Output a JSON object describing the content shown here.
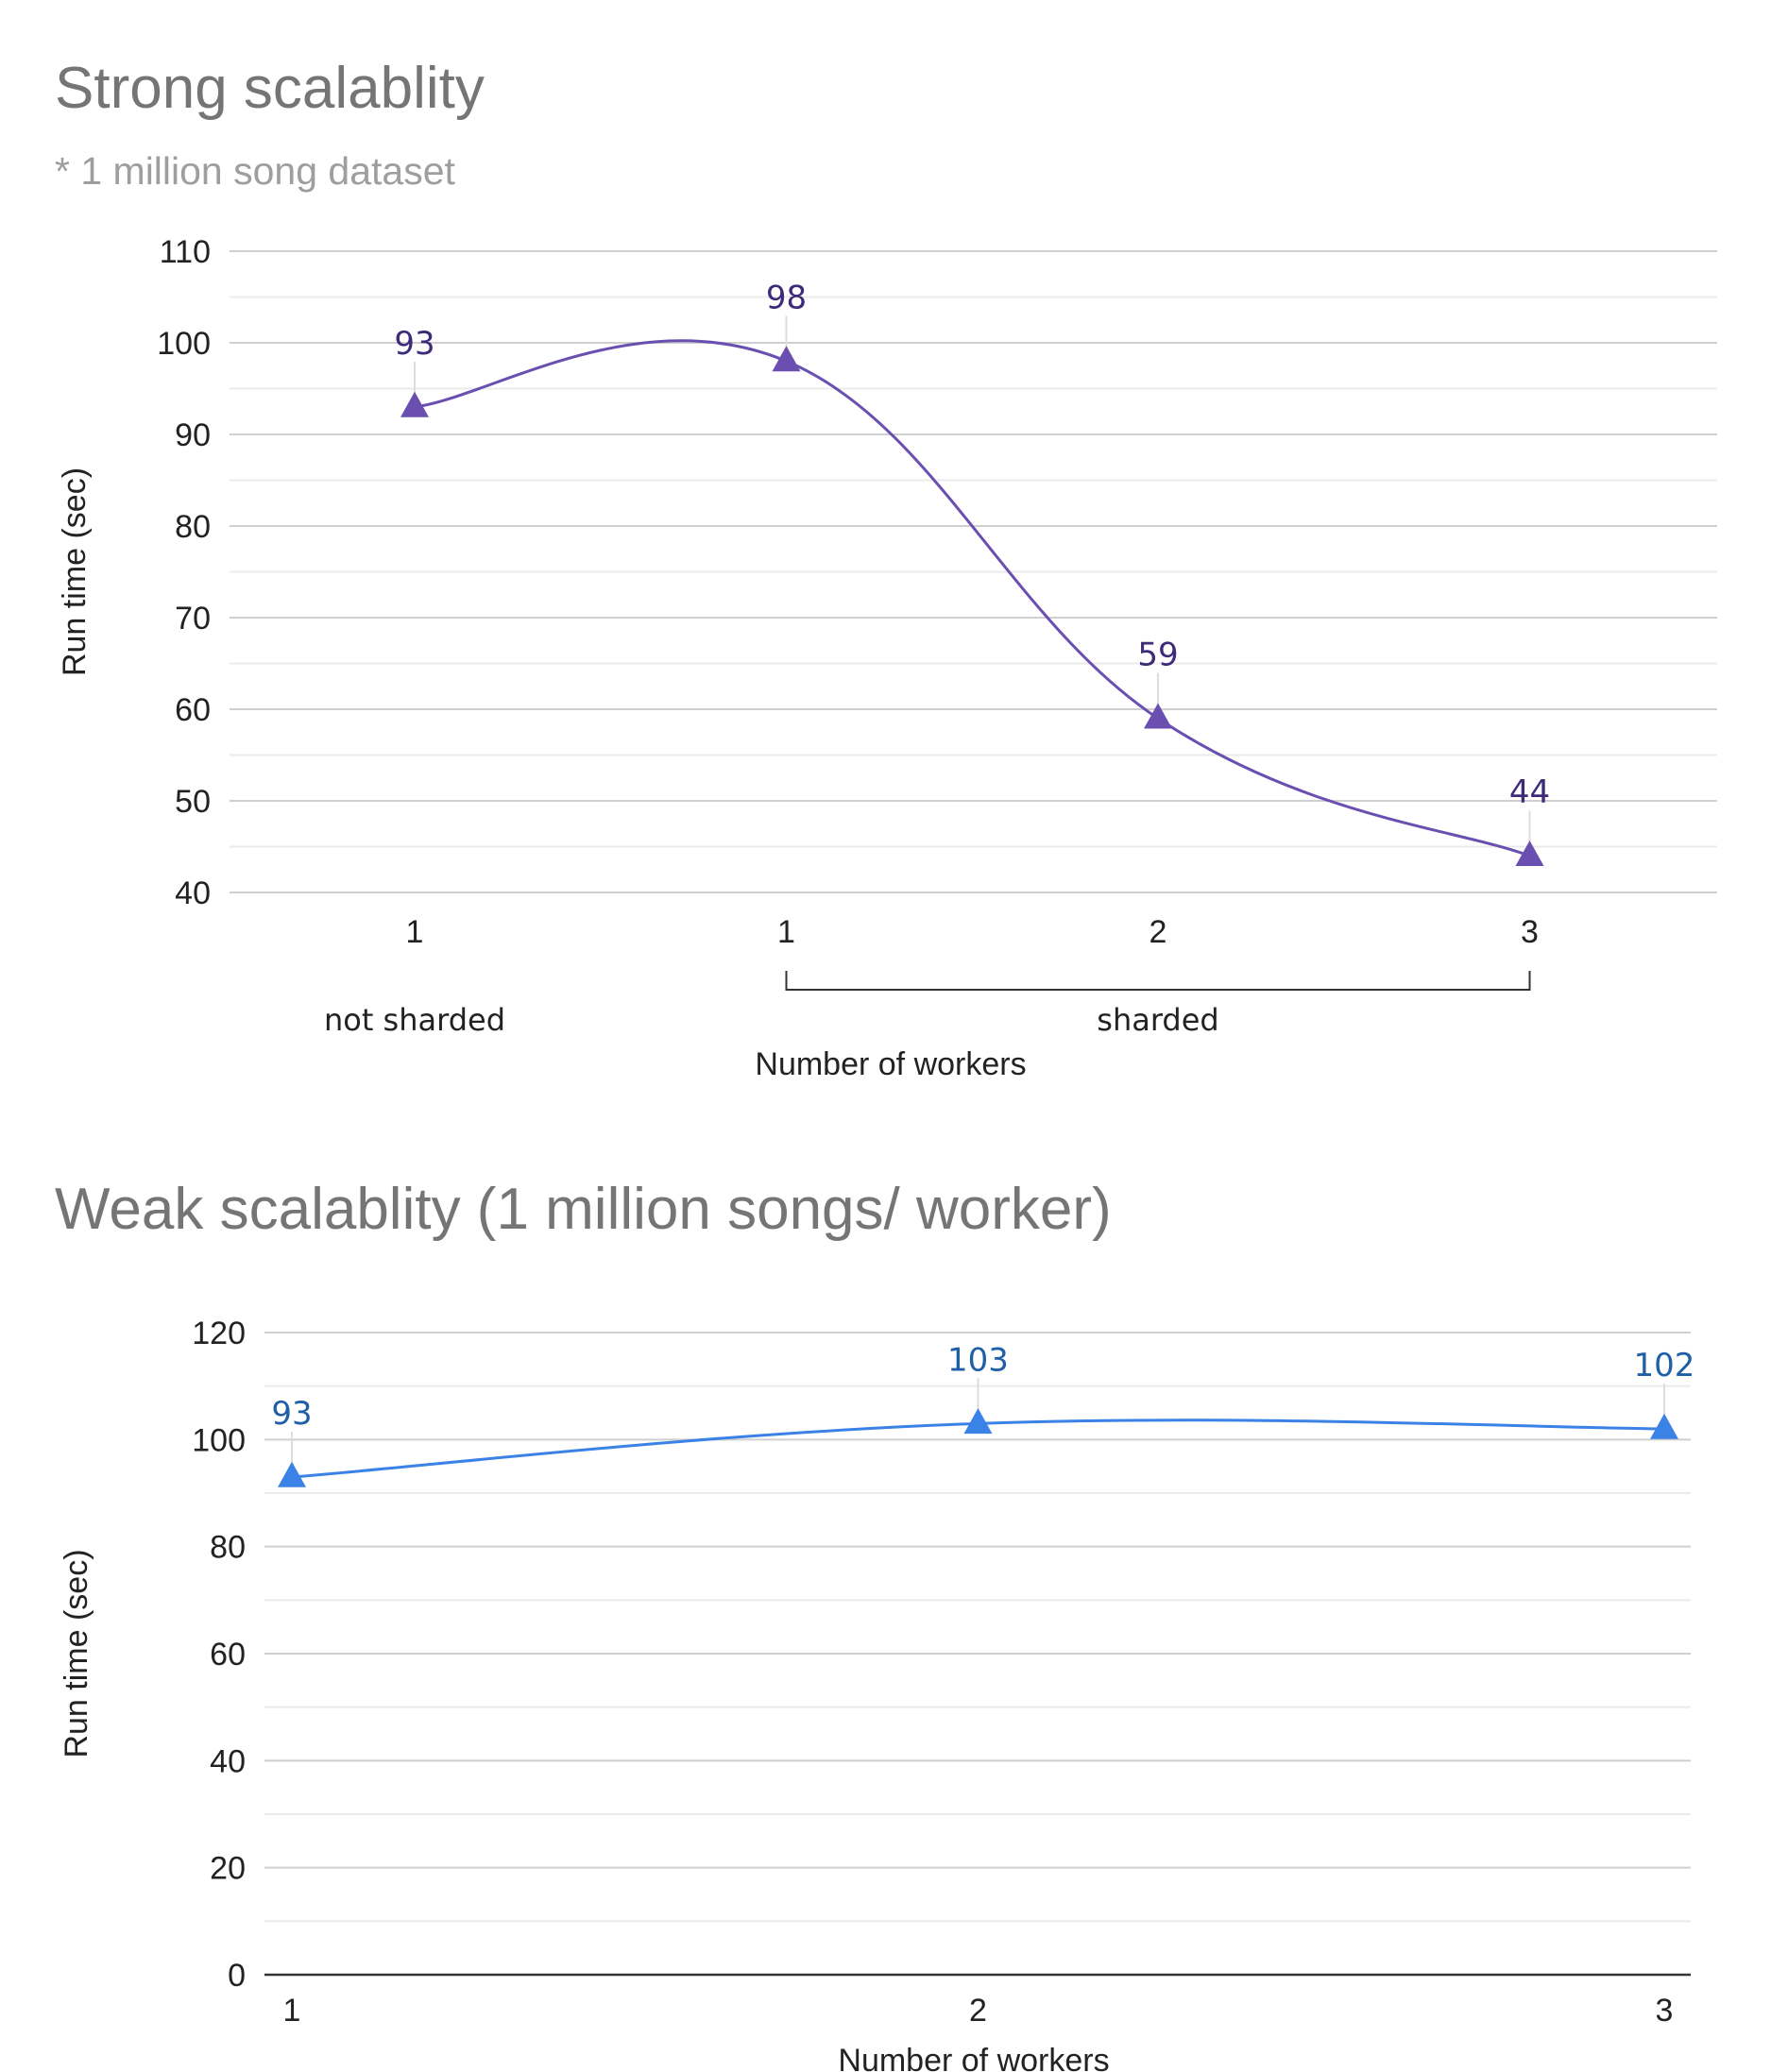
{
  "chart_data": [
    {
      "type": "line",
      "title": "Strong scalablity",
      "subtitle": "* 1 million song dataset",
      "xlabel": "Number of workers",
      "ylabel": "Run time (sec)",
      "categories": [
        "1",
        "1",
        "2",
        "3"
      ],
      "groups": [
        {
          "label": "not sharded",
          "categories": [
            0
          ]
        },
        {
          "label": "sharded",
          "categories": [
            1,
            2,
            3
          ]
        }
      ],
      "values": [
        93,
        98,
        59,
        44
      ],
      "data_labels": [
        "93",
        "98",
        "59",
        "44"
      ],
      "ylim": [
        40,
        110
      ],
      "yticks": [
        40,
        50,
        60,
        70,
        80,
        90,
        100,
        110
      ],
      "ytick_labels": [
        "40",
        "50",
        "60",
        "70",
        "80",
        "90",
        "100",
        "110"
      ],
      "grid": true,
      "marker": "triangle",
      "smooth": true,
      "color": "#6a4fb1",
      "label_color": "#3d2a78"
    },
    {
      "type": "line",
      "title": "Weak scalablity (1 million songs/ worker)",
      "xlabel": "Number of workers",
      "ylabel": "Run time (sec)",
      "categories": [
        "1",
        "2",
        "3"
      ],
      "values": [
        93,
        103,
        102
      ],
      "data_labels": [
        "93",
        "103",
        "102"
      ],
      "ylim": [
        0,
        120
      ],
      "yticks": [
        0,
        20,
        40,
        60,
        80,
        100,
        120
      ],
      "ytick_labels": [
        "0",
        "20",
        "40",
        "60",
        "80",
        "100",
        "120"
      ],
      "grid": true,
      "marker": "triangle",
      "smooth": true,
      "color": "#3b82e6",
      "label_color": "#1f5fa8"
    }
  ]
}
